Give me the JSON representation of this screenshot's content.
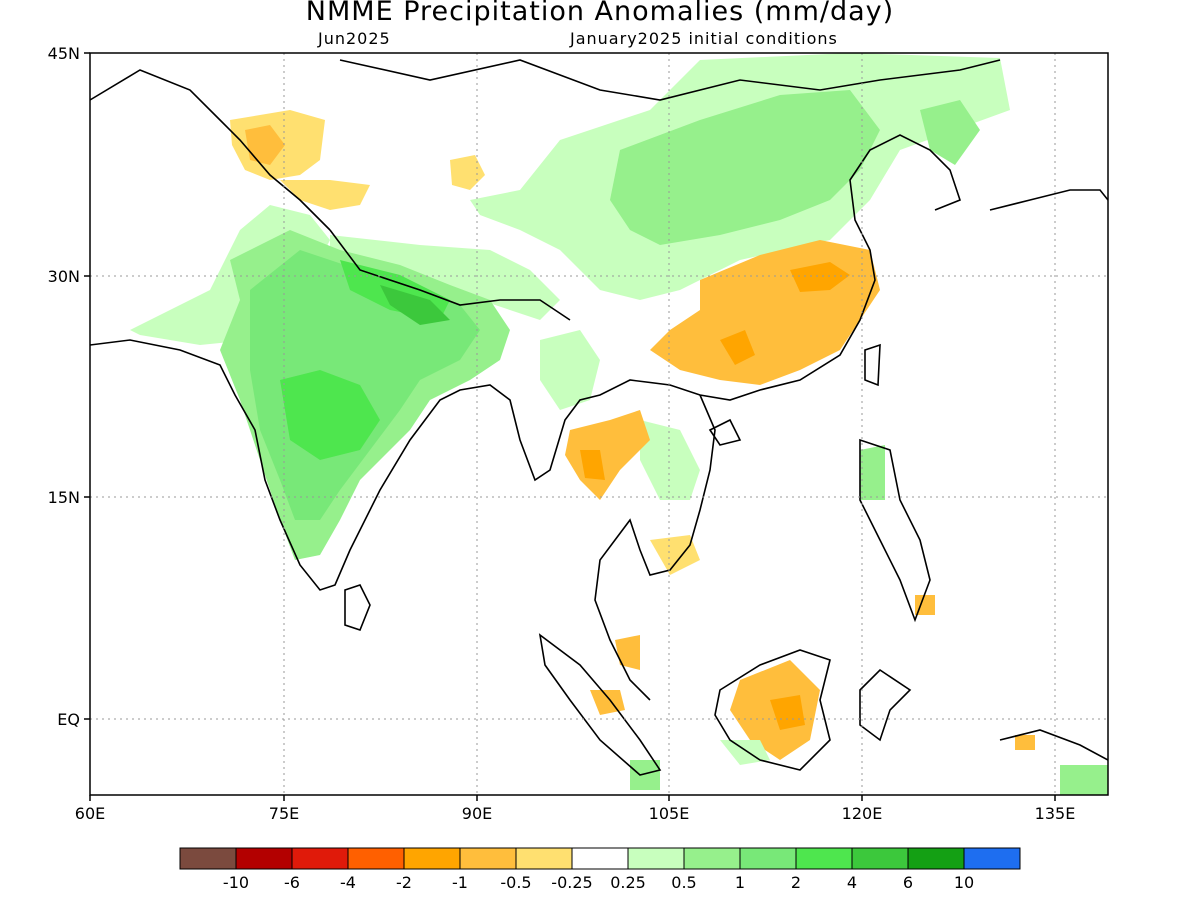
{
  "title": "NMME Precipitation Anomalies (mm/day)",
  "subtitle_left": "Jun2025",
  "subtitle_right": "January2025 initial conditions",
  "axes": {
    "lat_labels": [
      "45N",
      "30N",
      "15N",
      "EQ"
    ],
    "lon_labels": [
      "60E",
      "75E",
      "90E",
      "105E",
      "120E",
      "135E"
    ]
  },
  "legend": {
    "colors": [
      "#7b4a3e",
      "#b30000",
      "#e01a0a",
      "#ff6000",
      "#ffa500",
      "#ffbe3c",
      "#ffe070",
      "#ffffff",
      "#c8ffbe",
      "#96f08c",
      "#78e878",
      "#4ee64e",
      "#3cc83c",
      "#14a014",
      "#1e6ef0"
    ],
    "labels": [
      "-10",
      "-6",
      "-4",
      "-2",
      "-1",
      "-0.5",
      "-0.25",
      "0.25",
      "0.5",
      "1",
      "2",
      "4",
      "6",
      "10"
    ]
  },
  "region_colors": {
    "green_light": "#c8ffbe",
    "green": "#96f08c",
    "green_mid": "#78e878",
    "green_strong": "#4ee64e",
    "green_dark": "#3cc83c",
    "yellow": "#ffe070",
    "orange_light": "#ffbe3c",
    "orange": "#ffa500"
  }
}
